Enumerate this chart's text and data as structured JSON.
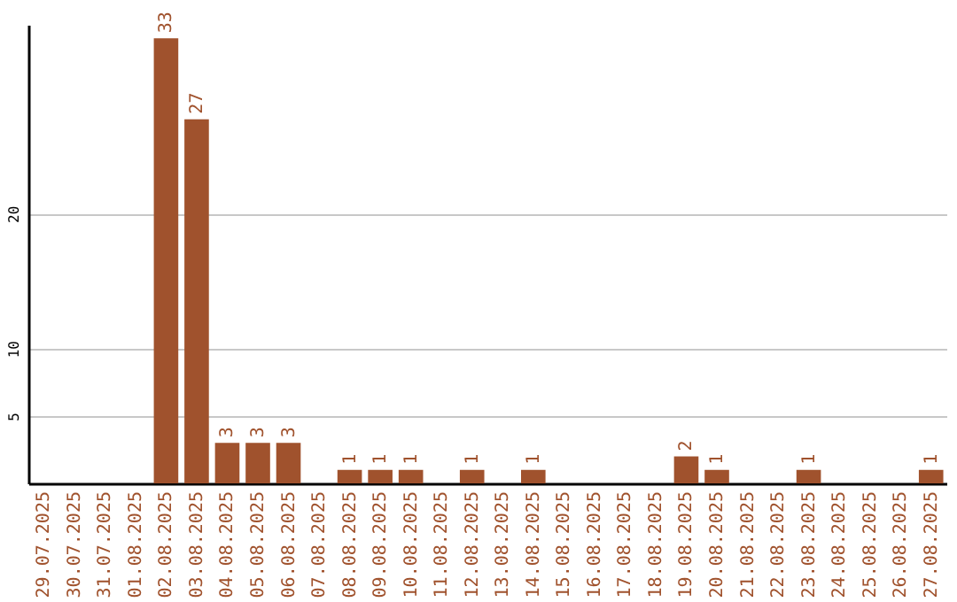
{
  "chart_data": {
    "type": "bar",
    "categories": [
      "29.07.2025",
      "30.07.2025",
      "31.07.2025",
      "01.08.2025",
      "02.08.2025",
      "03.08.2025",
      "04.08.2025",
      "05.08.2025",
      "06.08.2025",
      "07.08.2025",
      "08.08.2025",
      "09.08.2025",
      "10.08.2025",
      "11.08.2025",
      "12.08.2025",
      "13.08.2025",
      "14.08.2025",
      "15.08.2025",
      "16.08.2025",
      "17.08.2025",
      "18.08.2025",
      "19.08.2025",
      "20.08.2025",
      "21.08.2025",
      "22.08.2025",
      "23.08.2025",
      "24.08.2025",
      "25.08.2025",
      "26.08.2025",
      "27.08.2025"
    ],
    "values": [
      0,
      0,
      0,
      0,
      33,
      27,
      3,
      3,
      3,
      0,
      1,
      1,
      1,
      0,
      1,
      0,
      1,
      0,
      0,
      0,
      0,
      2,
      1,
      0,
      0,
      1,
      0,
      0,
      0,
      1
    ],
    "value_labels": [
      null,
      null,
      null,
      null,
      "33",
      "27",
      "3",
      "3",
      "3",
      null,
      "1",
      "1",
      "1",
      null,
      "1",
      null,
      "1",
      null,
      null,
      null,
      null,
      "2",
      "1",
      null,
      null,
      "1",
      null,
      null,
      null,
      "1"
    ],
    "color": "#a0522d",
    "ylim": [
      0,
      34
    ],
    "yticks": [
      5,
      10,
      20
    ],
    "grid": "y"
  }
}
